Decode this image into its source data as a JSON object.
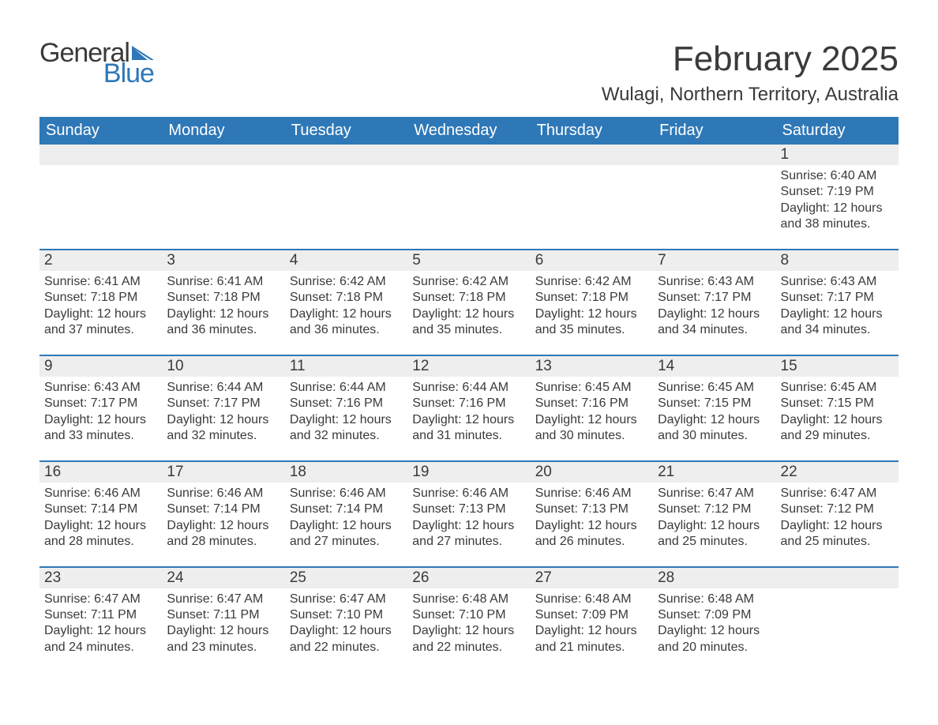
{
  "brand": {
    "word1": "General",
    "word2": "Blue"
  },
  "title": "February 2025",
  "location": "Wulagi, Northern Territory, Australia",
  "colors": {
    "header_bg": "#2f78b7",
    "header_text": "#ffffff",
    "daynum_bg": "#eeeeee",
    "text": "#3a3a3a",
    "page_bg": "#ffffff",
    "logo_accent": "#2f78b7"
  },
  "typography": {
    "title_fontsize": 44,
    "location_fontsize": 24,
    "weekday_fontsize": 20,
    "daynum_fontsize": 19,
    "body_fontsize": 16
  },
  "weekdays": [
    "Sunday",
    "Monday",
    "Tuesday",
    "Wednesday",
    "Thursday",
    "Friday",
    "Saturday"
  ],
  "labels": {
    "sunrise": "Sunrise",
    "sunset": "Sunset",
    "daylight": "Daylight"
  },
  "weeks": [
    [
      {
        "empty": true
      },
      {
        "empty": true
      },
      {
        "empty": true
      },
      {
        "empty": true
      },
      {
        "empty": true
      },
      {
        "empty": true
      },
      {
        "day": 1,
        "sunrise": "6:40 AM",
        "sunset": "7:19 PM",
        "daylight": "12 hours and 38 minutes."
      }
    ],
    [
      {
        "day": 2,
        "sunrise": "6:41 AM",
        "sunset": "7:18 PM",
        "daylight": "12 hours and 37 minutes."
      },
      {
        "day": 3,
        "sunrise": "6:41 AM",
        "sunset": "7:18 PM",
        "daylight": "12 hours and 36 minutes."
      },
      {
        "day": 4,
        "sunrise": "6:42 AM",
        "sunset": "7:18 PM",
        "daylight": "12 hours and 36 minutes."
      },
      {
        "day": 5,
        "sunrise": "6:42 AM",
        "sunset": "7:18 PM",
        "daylight": "12 hours and 35 minutes."
      },
      {
        "day": 6,
        "sunrise": "6:42 AM",
        "sunset": "7:18 PM",
        "daylight": "12 hours and 35 minutes."
      },
      {
        "day": 7,
        "sunrise": "6:43 AM",
        "sunset": "7:17 PM",
        "daylight": "12 hours and 34 minutes."
      },
      {
        "day": 8,
        "sunrise": "6:43 AM",
        "sunset": "7:17 PM",
        "daylight": "12 hours and 34 minutes."
      }
    ],
    [
      {
        "day": 9,
        "sunrise": "6:43 AM",
        "sunset": "7:17 PM",
        "daylight": "12 hours and 33 minutes."
      },
      {
        "day": 10,
        "sunrise": "6:44 AM",
        "sunset": "7:17 PM",
        "daylight": "12 hours and 32 minutes."
      },
      {
        "day": 11,
        "sunrise": "6:44 AM",
        "sunset": "7:16 PM",
        "daylight": "12 hours and 32 minutes."
      },
      {
        "day": 12,
        "sunrise": "6:44 AM",
        "sunset": "7:16 PM",
        "daylight": "12 hours and 31 minutes."
      },
      {
        "day": 13,
        "sunrise": "6:45 AM",
        "sunset": "7:16 PM",
        "daylight": "12 hours and 30 minutes."
      },
      {
        "day": 14,
        "sunrise": "6:45 AM",
        "sunset": "7:15 PM",
        "daylight": "12 hours and 30 minutes."
      },
      {
        "day": 15,
        "sunrise": "6:45 AM",
        "sunset": "7:15 PM",
        "daylight": "12 hours and 29 minutes."
      }
    ],
    [
      {
        "day": 16,
        "sunrise": "6:46 AM",
        "sunset": "7:14 PM",
        "daylight": "12 hours and 28 minutes."
      },
      {
        "day": 17,
        "sunrise": "6:46 AM",
        "sunset": "7:14 PM",
        "daylight": "12 hours and 28 minutes."
      },
      {
        "day": 18,
        "sunrise": "6:46 AM",
        "sunset": "7:14 PM",
        "daylight": "12 hours and 27 minutes."
      },
      {
        "day": 19,
        "sunrise": "6:46 AM",
        "sunset": "7:13 PM",
        "daylight": "12 hours and 27 minutes."
      },
      {
        "day": 20,
        "sunrise": "6:46 AM",
        "sunset": "7:13 PM",
        "daylight": "12 hours and 26 minutes."
      },
      {
        "day": 21,
        "sunrise": "6:47 AM",
        "sunset": "7:12 PM",
        "daylight": "12 hours and 25 minutes."
      },
      {
        "day": 22,
        "sunrise": "6:47 AM",
        "sunset": "7:12 PM",
        "daylight": "12 hours and 25 minutes."
      }
    ],
    [
      {
        "day": 23,
        "sunrise": "6:47 AM",
        "sunset": "7:11 PM",
        "daylight": "12 hours and 24 minutes."
      },
      {
        "day": 24,
        "sunrise": "6:47 AM",
        "sunset": "7:11 PM",
        "daylight": "12 hours and 23 minutes."
      },
      {
        "day": 25,
        "sunrise": "6:47 AM",
        "sunset": "7:10 PM",
        "daylight": "12 hours and 22 minutes."
      },
      {
        "day": 26,
        "sunrise": "6:48 AM",
        "sunset": "7:10 PM",
        "daylight": "12 hours and 22 minutes."
      },
      {
        "day": 27,
        "sunrise": "6:48 AM",
        "sunset": "7:09 PM",
        "daylight": "12 hours and 21 minutes."
      },
      {
        "day": 28,
        "sunrise": "6:48 AM",
        "sunset": "7:09 PM",
        "daylight": "12 hours and 20 minutes."
      },
      {
        "empty": true
      }
    ]
  ]
}
